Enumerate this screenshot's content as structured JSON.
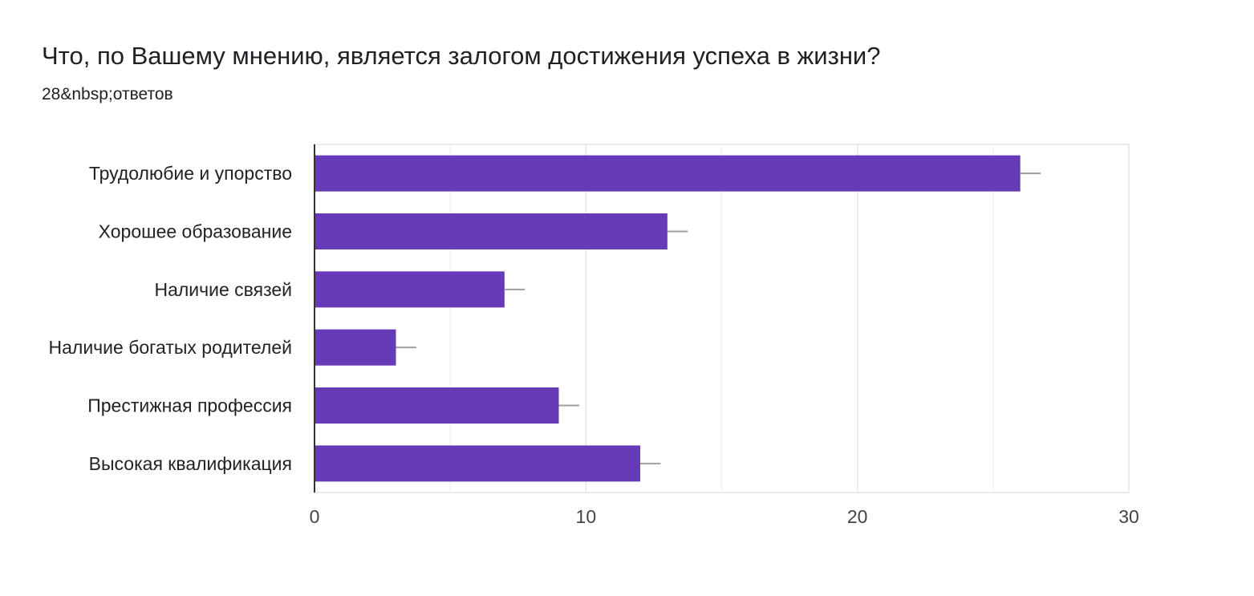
{
  "header": {
    "title": "Что, по Вашему мнению, является залогом достижения успеха в жизни?",
    "subtitle": "28&nbsp;ответов"
  },
  "chart_data": {
    "type": "bar",
    "orientation": "horizontal",
    "categories": [
      "Трудолюбие и упорство",
      "Хорошее образование",
      "Наличие связей",
      "Наличие богатых родителей",
      "Престижная профессия",
      "Высокая квалификация"
    ],
    "values": [
      26,
      13,
      7,
      3,
      9,
      12
    ],
    "error_bar": 0.75,
    "xlim": [
      0,
      30
    ],
    "xticks": [
      0,
      10,
      20,
      30
    ],
    "grid": true,
    "colors": {
      "bar": "#673ab7",
      "error": "#9e9e9e",
      "grid": "#ebebeb",
      "axis": "#333333"
    }
  }
}
